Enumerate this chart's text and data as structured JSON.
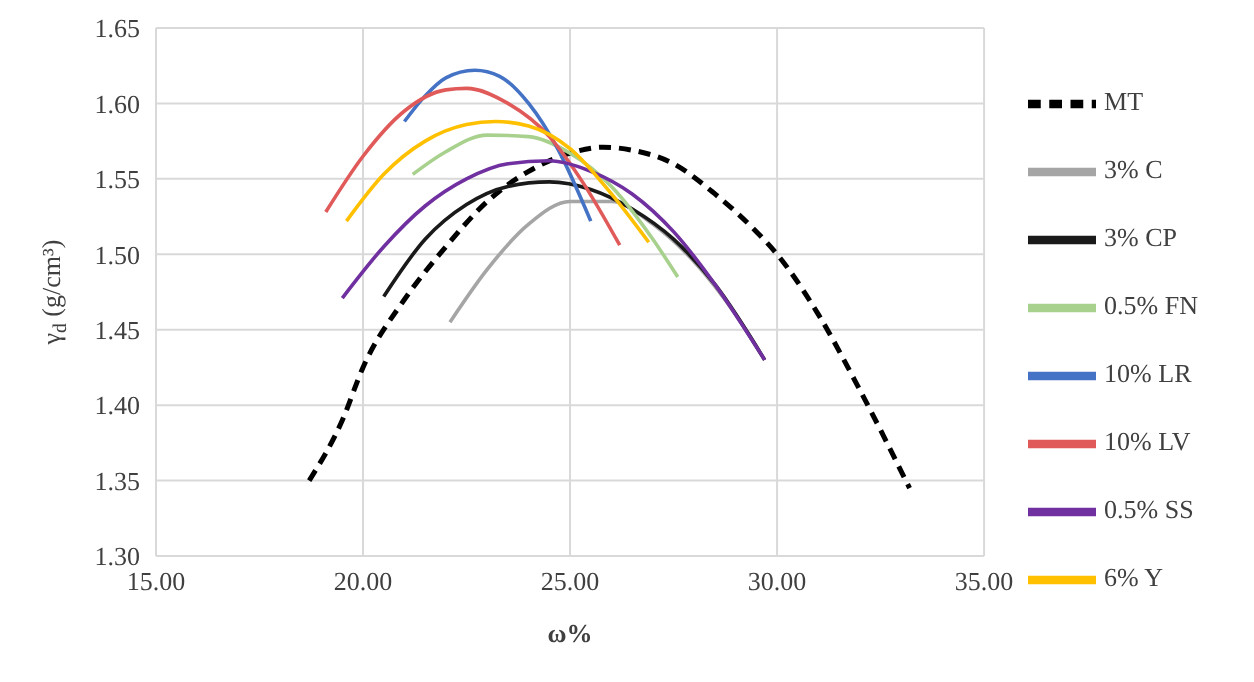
{
  "chart_data": {
    "type": "line",
    "xlabel": "ω%",
    "ylabel": "γ$_{d}$ (g/cm³)",
    "xlim": [
      15,
      35
    ],
    "xticks": [
      {
        "value": 15,
        "label": "15.00"
      },
      {
        "value": 20,
        "label": "20.00"
      },
      {
        "value": 25,
        "label": "25.00"
      },
      {
        "value": 30,
        "label": "30.00"
      },
      {
        "value": 35,
        "label": "35.00"
      }
    ],
    "ylim": [
      1.3,
      1.65
    ],
    "yticks": [
      {
        "value": 1.3,
        "label": "1.30"
      },
      {
        "value": 1.35,
        "label": "1.35"
      },
      {
        "value": 1.4,
        "label": "1.40"
      },
      {
        "value": 1.45,
        "label": "1.45"
      },
      {
        "value": 1.5,
        "label": "1.50"
      },
      {
        "value": 1.55,
        "label": "1.55"
      },
      {
        "value": 1.6,
        "label": "1.60"
      },
      {
        "value": 1.65,
        "label": "1.65"
      }
    ],
    "grid": true,
    "legend": "right",
    "marker": "none",
    "series": [
      {
        "name": "MT",
        "color": "#000000",
        "line_style": "dashed",
        "x": [
          18.7,
          19.5,
          20,
          21,
          22,
          23,
          24,
          25,
          25.8,
          26.5,
          27.5,
          28.5,
          29.5,
          30,
          31,
          32,
          33.2
        ],
        "values": [
          1.35,
          1.39,
          1.425,
          1.47,
          1.505,
          1.535,
          1.555,
          1.567,
          1.571,
          1.569,
          1.56,
          1.54,
          1.515,
          1.5,
          1.46,
          1.41,
          1.345
        ]
      },
      {
        "name": "3% C",
        "color": "#a5a5a5",
        "line_style": "solid",
        "x": [
          22.1,
          23,
          24,
          25,
          26,
          27,
          28,
          29,
          29.7
        ],
        "values": [
          1.455,
          1.49,
          1.52,
          1.535,
          1.535,
          1.52,
          1.495,
          1.46,
          1.43
        ]
      },
      {
        "name": "3% CP",
        "color": "#1a1a1a",
        "line_style": "solid",
        "x": [
          20.5,
          21.5,
          22.5,
          23.5,
          24.5,
          25.5,
          26.5,
          27.5,
          28.5,
          29.7
        ],
        "values": [
          1.472,
          1.51,
          1.533,
          1.545,
          1.548,
          1.543,
          1.53,
          1.51,
          1.48,
          1.43
        ]
      },
      {
        "name": "0.5% FN",
        "color": "#a9d18e",
        "line_style": "solid",
        "x": [
          21.2,
          22,
          23,
          24,
          25,
          26,
          27,
          27.6
        ],
        "values": [
          1.553,
          1.568,
          1.579,
          1.578,
          1.567,
          1.545,
          1.51,
          1.485
        ]
      },
      {
        "name": "10% LR",
        "color": "#4472c4",
        "line_style": "solid",
        "x": [
          21,
          21.5,
          22,
          22.7,
          23.3,
          24,
          24.7,
          25.5
        ],
        "values": [
          1.588,
          1.605,
          1.617,
          1.622,
          1.618,
          1.6,
          1.57,
          1.522
        ]
      },
      {
        "name": "10% LV",
        "color": "#e05a5a",
        "line_style": "solid",
        "x": [
          19.1,
          20,
          21,
          22,
          22.5,
          23.5,
          24.5,
          25.3,
          26.2
        ],
        "values": [
          1.528,
          1.565,
          1.595,
          1.609,
          1.61,
          1.6,
          1.578,
          1.548,
          1.506
        ]
      },
      {
        "name": "0.5% SS",
        "color": "#7030a0",
        "line_style": "solid",
        "x": [
          19.5,
          20.5,
          21.5,
          22.5,
          23.5,
          24.5,
          25.5,
          26.5,
          27.5,
          28.5,
          29.7
        ],
        "values": [
          1.471,
          1.505,
          1.532,
          1.55,
          1.56,
          1.562,
          1.555,
          1.54,
          1.515,
          1.48,
          1.43
        ]
      },
      {
        "name": "6% Y",
        "color": "#ffc000",
        "line_style": "solid",
        "x": [
          19.6,
          20.5,
          21.5,
          22.5,
          23.2,
          24,
          25,
          26,
          26.9
        ],
        "values": [
          1.522,
          1.553,
          1.575,
          1.586,
          1.588,
          1.585,
          1.57,
          1.54,
          1.508
        ]
      }
    ]
  }
}
